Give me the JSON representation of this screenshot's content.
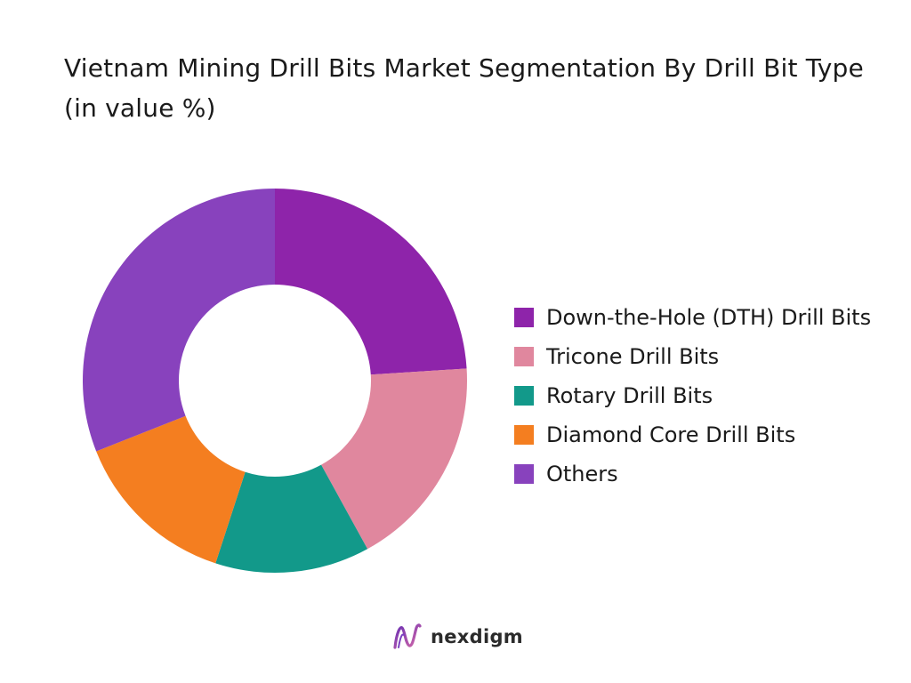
{
  "title": "Vietnam Mining Drill Bits Market Segmentation By Drill Bit Type (in value %)",
  "brand": {
    "name": "nexdigm",
    "logo_icon": "nexdigm-logo-icon"
  },
  "chart_data": {
    "type": "pie",
    "variant": "donut",
    "title": "Vietnam Mining Drill Bits Market Segmentation By Drill Bit Type (in value %)",
    "start_angle_deg": 0,
    "direction": "clockwise",
    "legend_position": "right",
    "slices": [
      {
        "label": "Down-the-Hole (DTH) Drill Bits",
        "value": 24,
        "color": "#8E24AA"
      },
      {
        "label": "Tricone Drill Bits",
        "value": 18,
        "color": "#E0879E"
      },
      {
        "label": "Rotary Drill Bits",
        "value": 13,
        "color": "#12998A"
      },
      {
        "label": "Diamond Core Drill Bits",
        "value": 14,
        "color": "#F47E20"
      },
      {
        "label": "Others",
        "value": 31,
        "color": "#8842BD"
      }
    ]
  }
}
